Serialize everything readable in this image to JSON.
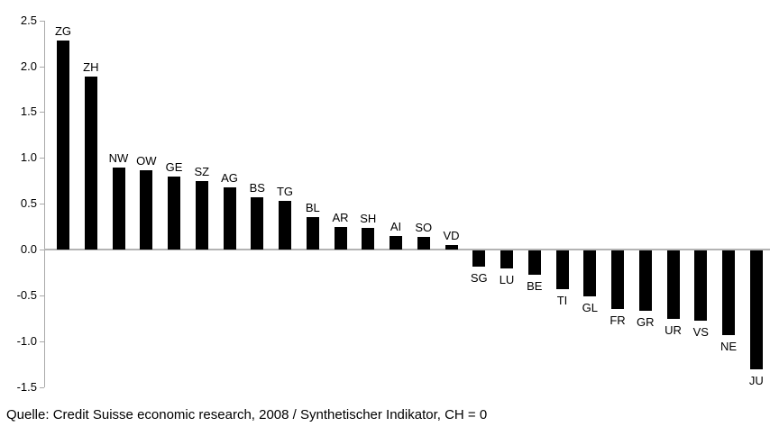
{
  "chart_data": {
    "type": "bar",
    "title": "",
    "categories": [
      "ZG",
      "ZH",
      "NW",
      "OW",
      "GE",
      "SZ",
      "AG",
      "BS",
      "TG",
      "BL",
      "AR",
      "SH",
      "AI",
      "SO",
      "VD",
      "SG",
      "LU",
      "BE",
      "TI",
      "GL",
      "FR",
      "GR",
      "UR",
      "VS",
      "NE",
      "JU"
    ],
    "values": [
      2.28,
      1.89,
      0.89,
      0.86,
      0.8,
      0.75,
      0.68,
      0.57,
      0.53,
      0.35,
      0.25,
      0.24,
      0.15,
      0.14,
      0.05,
      -0.18,
      -0.2,
      -0.27,
      -0.42,
      -0.5,
      -0.64,
      -0.66,
      -0.75,
      -0.77,
      -0.92,
      -1.3
    ],
    "xlabel": "",
    "ylabel": "",
    "ylim": [
      -1.5,
      2.5
    ],
    "ytick_step": 0.5,
    "ytick_labels": [
      "2.5",
      "2.0",
      "1.5",
      "1.0",
      "0.5",
      "0.0",
      "-0.5",
      "-1.0",
      "-1.5"
    ],
    "grid": false,
    "legend": false,
    "bar_color": "#000000",
    "axis_color": "#a9a9a9"
  },
  "caption": {
    "text": "Quelle: Credit Suisse economic research, 2008 / Synthetischer Indikator, CH = 0"
  }
}
